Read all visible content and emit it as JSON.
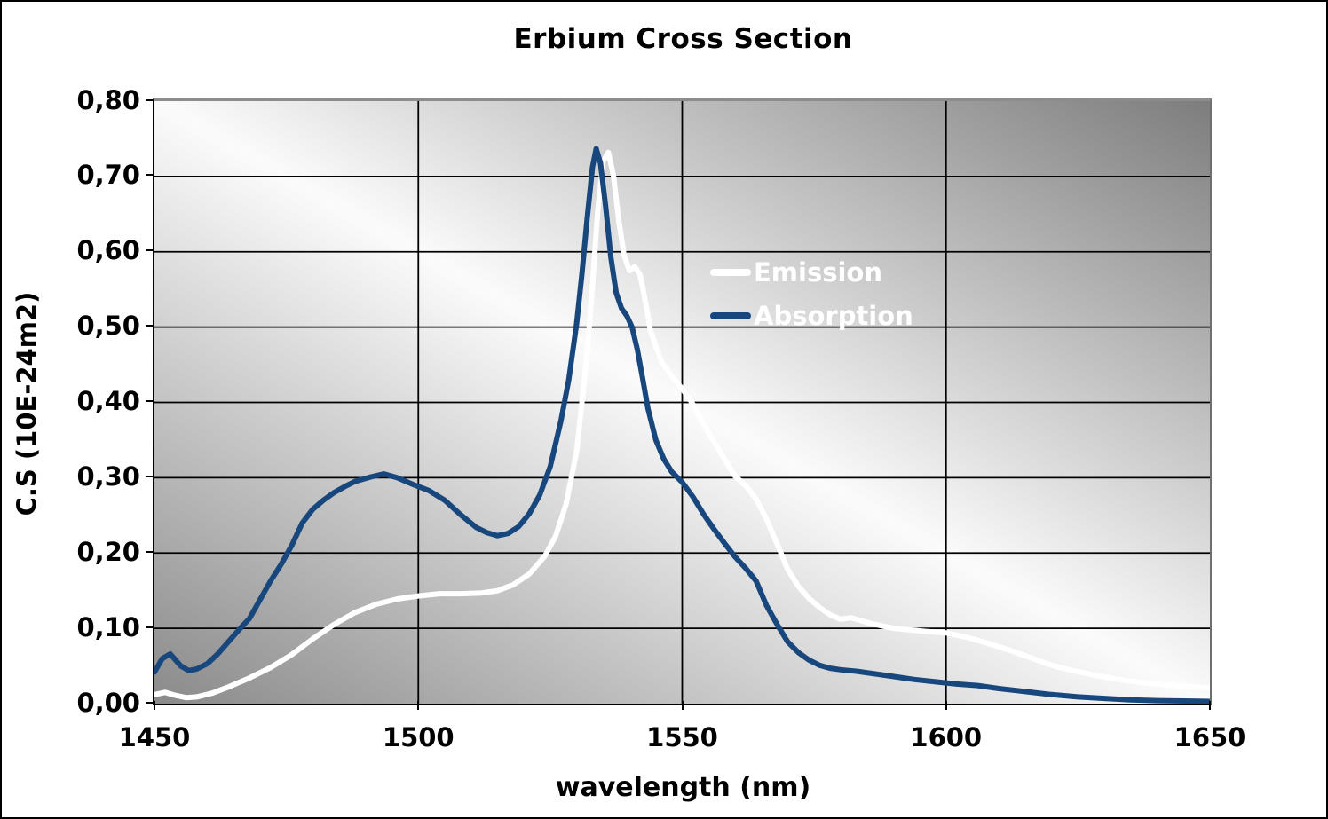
{
  "chart_data": {
    "type": "line",
    "title": "Erbium Cross Section",
    "xlabel": "wavelength (nm)",
    "ylabel": "C.S (10E-24m2)",
    "xlim": [
      1450,
      1650
    ],
    "ylim": [
      0,
      0.8
    ],
    "grid": true,
    "legend_position": "inside upper-middle",
    "x_ticks": {
      "labels": [
        "1450",
        "1500",
        "1550",
        "1600",
        "1650"
      ],
      "values": [
        1450,
        1500,
        1550,
        1600,
        1650
      ]
    },
    "y_ticks": {
      "labels": [
        "0,00",
        "0,10",
        "0,20",
        "0,30",
        "0,40",
        "0,50",
        "0,60",
        "0,70",
        "0,80"
      ],
      "values": [
        0,
        0.1,
        0.2,
        0.3,
        0.4,
        0.5,
        0.6,
        0.7,
        0.8
      ]
    },
    "colors": {
      "gridline": "#000000",
      "plot_border_top_right": "#8c8c8c",
      "plot_bg_gradient": [
        "#8A8A8A",
        "#FBFBFB",
        "#7D7D7D"
      ],
      "legend_text": "#FFFFFF"
    },
    "series": [
      {
        "name": "Emission",
        "color": "#FFFFFF",
        "x": [
          1450,
          1452,
          1454,
          1456,
          1458,
          1461,
          1464,
          1468,
          1472,
          1476,
          1480,
          1484,
          1488,
          1492,
          1496,
          1500,
          1504,
          1508,
          1512,
          1515,
          1518,
          1521,
          1524,
          1526,
          1528,
          1530,
          1532,
          1533,
          1534,
          1535,
          1536,
          1537,
          1538,
          1539,
          1540,
          1541,
          1542,
          1543,
          1544,
          1546,
          1548,
          1550,
          1552,
          1554,
          1556,
          1558,
          1560,
          1562,
          1564,
          1566,
          1568,
          1570,
          1572,
          1574,
          1576,
          1578,
          1580,
          1582,
          1584,
          1586,
          1588,
          1590,
          1593,
          1596,
          1600,
          1604,
          1608,
          1612,
          1616,
          1620,
          1624,
          1628,
          1632,
          1636,
          1640,
          1645,
          1650
        ],
        "y": [
          0.012,
          0.015,
          0.011,
          0.008,
          0.009,
          0.014,
          0.022,
          0.034,
          0.048,
          0.065,
          0.086,
          0.105,
          0.121,
          0.132,
          0.139,
          0.143,
          0.146,
          0.146,
          0.147,
          0.15,
          0.158,
          0.172,
          0.196,
          0.222,
          0.265,
          0.335,
          0.465,
          0.555,
          0.655,
          0.72,
          0.732,
          0.7,
          0.64,
          0.595,
          0.575,
          0.58,
          0.57,
          0.535,
          0.495,
          0.455,
          0.435,
          0.418,
          0.398,
          0.372,
          0.348,
          0.325,
          0.302,
          0.29,
          0.272,
          0.245,
          0.212,
          0.178,
          0.156,
          0.14,
          0.128,
          0.118,
          0.112,
          0.114,
          0.11,
          0.106,
          0.103,
          0.1,
          0.098,
          0.096,
          0.094,
          0.088,
          0.08,
          0.071,
          0.061,
          0.051,
          0.044,
          0.038,
          0.033,
          0.029,
          0.026,
          0.023,
          0.021
        ]
      },
      {
        "name": "Absorption",
        "color": "#17477C",
        "x": [
          1450,
          1451.5,
          1453,
          1455,
          1456.5,
          1458,
          1460,
          1462,
          1464,
          1466,
          1468,
          1470,
          1472,
          1474,
          1476,
          1478,
          1480,
          1482,
          1484,
          1486,
          1488,
          1491,
          1493.5,
          1496,
          1499,
          1502,
          1505,
          1508,
          1511,
          1513,
          1515,
          1517,
          1519,
          1521,
          1523,
          1525,
          1527,
          1528.5,
          1530,
          1531,
          1532,
          1533,
          1533.7,
          1534.5,
          1535.5,
          1536.5,
          1537.5,
          1538.5,
          1539.5,
          1540.5,
          1541.5,
          1542.5,
          1543.5,
          1545,
          1546.5,
          1548,
          1550,
          1552,
          1554,
          1556,
          1558,
          1560,
          1562,
          1564,
          1566,
          1568,
          1570,
          1572,
          1574,
          1576,
          1578,
          1580,
          1583,
          1586,
          1590,
          1594,
          1598,
          1602,
          1606,
          1610,
          1615,
          1620,
          1625,
          1630,
          1635,
          1640,
          1645,
          1650
        ],
        "y": [
          0.042,
          0.06,
          0.066,
          0.05,
          0.044,
          0.046,
          0.053,
          0.066,
          0.082,
          0.098,
          0.113,
          0.138,
          0.163,
          0.185,
          0.21,
          0.24,
          0.258,
          0.27,
          0.28,
          0.288,
          0.295,
          0.301,
          0.305,
          0.3,
          0.291,
          0.283,
          0.27,
          0.251,
          0.234,
          0.227,
          0.223,
          0.226,
          0.235,
          0.252,
          0.277,
          0.315,
          0.375,
          0.43,
          0.505,
          0.57,
          0.645,
          0.712,
          0.737,
          0.718,
          0.66,
          0.592,
          0.545,
          0.525,
          0.515,
          0.5,
          0.47,
          0.432,
          0.392,
          0.35,
          0.325,
          0.308,
          0.294,
          0.275,
          0.252,
          0.232,
          0.213,
          0.195,
          0.18,
          0.163,
          0.13,
          0.105,
          0.082,
          0.068,
          0.058,
          0.051,
          0.047,
          0.045,
          0.043,
          0.04,
          0.036,
          0.032,
          0.029,
          0.026,
          0.024,
          0.02,
          0.016,
          0.012,
          0.009,
          0.007,
          0.005,
          0.004,
          0.0035,
          0.003
        ]
      }
    ]
  }
}
